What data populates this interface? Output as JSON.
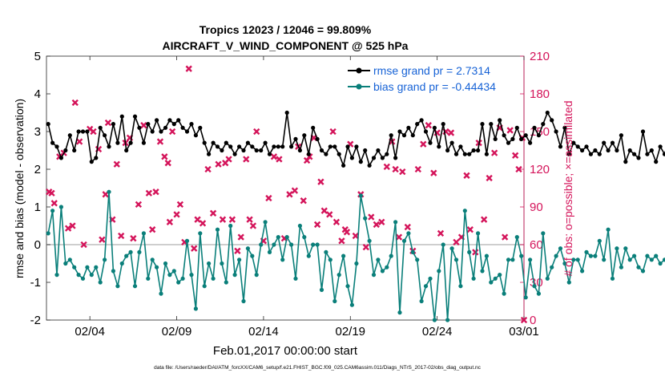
{
  "chart_data": {
    "type": "line",
    "title_line1": "Tropics 12023 / 12046 = 99.809%",
    "title_line2": "AIRCRAFT_V_WIND_COMPONENT @ 525 hPa",
    "xlabel": "Feb.01,2017 00:00:00 start",
    "ylabel_left": "rmse and bias (model - observation)",
    "ylabel_right": "# of obs: o=possible; ×=assimilated",
    "footer": "data file: /Users/raeder/DAI/ATM_forcXX/CAM6_setup/f.e21.FHIST_BGC.f09_025.CAM6assim.011/Diags_NTrS_2017-02/obs_diag_output.nc",
    "x_range_days": [
      0.5,
      28
    ],
    "x_ticks": [
      {
        "pos": 3,
        "label": "02/04"
      },
      {
        "pos": 8,
        "label": "02/09"
      },
      {
        "pos": 13,
        "label": "02/14"
      },
      {
        "pos": 18,
        "label": "02/19"
      },
      {
        "pos": 23,
        "label": "02/24"
      },
      {
        "pos": 28,
        "label": "03/01"
      }
    ],
    "ylim_left": [
      -2,
      5
    ],
    "y_ticks_left": [
      "-2",
      "-1",
      "0",
      "1",
      "2",
      "3",
      "4",
      "5"
    ],
    "ylim_right": [
      0,
      210
    ],
    "y_ticks_right": [
      "0",
      "30",
      "60",
      "90",
      "120",
      "150",
      "180",
      "210"
    ],
    "x_step_days": 0.25,
    "series": [
      {
        "name": "rmse grand pr = 2.7314",
        "color": "#000000",
        "marker": "circle",
        "values": [
          3.2,
          2.7,
          2.6,
          2.3,
          2.5,
          2.9,
          2.5,
          3.0,
          3.0,
          3.0,
          2.2,
          2.3,
          3.1,
          2.9,
          2.6,
          3.2,
          2.7,
          3.4,
          2.5,
          2.7,
          3.4,
          3.1,
          2.7,
          3.2,
          3.0,
          3.3,
          3.0,
          3.1,
          3.3,
          3.2,
          3.3,
          3.1,
          3.0,
          3.2,
          2.9,
          3.1,
          2.7,
          2.4,
          2.7,
          2.6,
          2.5,
          2.7,
          2.6,
          2.4,
          2.6,
          2.5,
          2.7,
          2.6,
          2.5,
          2.5,
          2.7,
          2.4,
          2.6,
          2.6,
          2.6,
          3.5,
          2.6,
          2.8,
          2.5,
          2.9,
          2.4,
          3.1,
          2.8,
          2.5,
          2.4,
          2.6,
          2.6,
          2.4,
          2.1,
          2.6,
          2.3,
          2.6,
          2.2,
          2.5,
          2.1,
          2.3,
          2.5,
          2.3,
          2.4,
          2.9,
          2.3,
          3.0,
          2.9,
          3.1,
          2.9,
          3.2,
          3.3,
          3.0,
          2.7,
          3.1,
          2.6,
          3.2,
          2.5,
          2.7,
          2.4,
          2.6,
          2.4,
          2.4,
          2.5,
          2.5,
          3.2,
          2.4,
          3.2,
          2.8,
          3.3,
          2.9,
          2.7,
          2.8,
          3.1,
          2.8,
          2.9,
          2.7,
          3.1,
          2.9,
          3.2,
          3.5,
          3.3,
          3.0,
          2.6,
          3.1,
          2.4,
          2.7,
          2.6,
          2.5,
          2.6,
          2.4,
          2.5,
          2.4,
          2.7,
          2.5,
          2.7,
          2.5,
          2.9,
          2.2,
          2.5,
          2.4,
          2.3,
          3.0,
          2.4,
          2.5,
          2.2,
          2.6,
          2.4,
          2.8,
          2.7,
          2.4,
          3.0,
          2.6,
          3.1,
          2.4,
          2.5,
          2.5,
          2.7,
          2.8,
          2.5,
          3.2,
          2.9,
          3.1,
          2.9,
          3.0,
          2.5,
          2.4,
          2.4,
          2.3,
          2.4,
          2.6,
          2.4,
          2.8,
          3.3,
          2.7,
          3.0,
          2.4,
          2.8,
          2.5,
          2.3,
          2.5,
          2.6,
          2.7,
          2.4,
          2.3,
          2.2,
          2.6,
          2.3,
          2.6,
          2.5,
          2.5,
          2.4,
          2.6,
          2.7,
          2.4,
          2.3,
          2.4,
          2.4,
          2.4,
          2.6,
          2.5,
          2.4,
          2.3,
          2.5,
          2.4,
          2.3,
          2.6,
          2.3,
          2.6,
          2.3,
          2.5,
          2.4,
          2.6,
          2.3,
          2.4,
          2.3,
          3.1,
          2.9,
          2.8,
          2.4,
          2.7,
          2.4,
          2.6,
          2.5,
          2.4,
          2.5,
          2.4,
          2.4,
          2.6,
          2.4,
          2.3,
          2.4,
          2.4,
          2.3,
          2.6,
          2.3,
          2.5,
          2.4,
          2.4,
          2.3,
          2.2,
          2.3,
          2.3,
          2.4,
          2.2,
          2.4,
          2.5,
          2.3,
          2.6,
          2.4,
          2.6,
          2.4,
          2.9,
          2.4,
          3.2,
          2.8,
          3.0,
          2.5,
          2.4,
          2.4
        ]
      },
      {
        "name": "bias grand pr = -0.44434",
        "color": "#0a7f7a",
        "marker": "circle",
        "values": [
          0.3,
          0.9,
          -0.8,
          1.0,
          -0.5,
          -0.4,
          -0.6,
          -0.8,
          -0.9,
          -0.6,
          -0.8,
          -0.6,
          -1.0,
          -0.4,
          1.4,
          -0.7,
          -1.1,
          -0.5,
          -0.3,
          -0.2,
          -1.1,
          -0.2,
          0.3,
          -0.9,
          -0.4,
          -0.6,
          -1.3,
          -0.5,
          -0.8,
          -0.7,
          -1.0,
          -0.9,
          0.1,
          -0.8,
          -1.7,
          0.3,
          -1.1,
          -0.5,
          -0.9,
          0.4,
          -0.5,
          -1.0,
          0.5,
          -0.8,
          -0.4,
          -1.5,
          -0.1,
          -0.3,
          -0.8,
          0.0,
          0.6,
          -0.2,
          0.0,
          0.2,
          -0.4,
          0.2,
          0.0,
          -0.9,
          0.5,
          0.2,
          -0.3,
          0.0,
          0.0,
          -1.2,
          -0.2,
          -0.4,
          -1.5,
          -0.8,
          -0.3,
          -1.1,
          -1.6,
          -0.5,
          1.3,
          0.7,
          0.1,
          -0.8,
          -0.4,
          -0.7,
          -0.6,
          -0.3,
          0.6,
          -1.8,
          0.1,
          0.3,
          -0.2,
          -0.4,
          -1.5,
          -1.1,
          -0.9,
          -2.0,
          -0.7,
          0.0,
          -2.0,
          -0.1,
          -0.4,
          -1.1,
          0.9,
          -0.2,
          -0.9,
          0.3,
          -0.7,
          -0.3,
          -1.0,
          -0.9,
          -0.8,
          -1.3,
          -0.4,
          -0.4,
          0.2,
          -0.3,
          -1.4,
          -0.4,
          -1.1,
          -1.3,
          0.3,
          -0.9,
          -0.6,
          -0.3,
          -0.1,
          -0.5,
          -1.0,
          -0.4,
          -0.4,
          -0.7,
          -0.2,
          -0.3,
          -0.3,
          0.1,
          -0.4,
          0.4,
          -0.9,
          -0.1,
          -0.6,
          -0.1,
          -0.4,
          -0.3,
          -0.6,
          -0.7,
          -0.3,
          -0.4,
          -0.3,
          -0.5,
          -0.4,
          -0.5,
          -0.8,
          -0.1,
          -1.0,
          -0.4,
          -0.7,
          -0.5,
          -0.8,
          -0.5,
          -0.8,
          -1.1,
          -0.7,
          -1.0,
          -0.6,
          -0.9,
          -0.6,
          -0.7,
          -0.3,
          -0.8,
          -0.4,
          -0.6,
          -0.7,
          -0.4,
          -0.8,
          -0.6,
          -0.3,
          -0.6,
          -0.2,
          -0.5,
          0.1,
          -0.4,
          0.4,
          -0.3,
          -0.5,
          -0.6,
          -0.4,
          -0.5,
          -0.3,
          -0.7,
          -0.5,
          -0.4,
          -0.6,
          -0.5,
          -0.7,
          -0.9,
          -0.4,
          -0.6,
          -0.3,
          -0.7,
          -0.5,
          -0.6,
          -0.4,
          -0.8,
          -0.5,
          -0.6,
          -0.7,
          -0.5,
          -0.4,
          -0.6,
          -0.5,
          -0.3,
          -0.4,
          -0.5,
          -0.6,
          -0.3,
          -0.5,
          -0.4,
          -0.7,
          -0.3,
          -0.5,
          -0.4,
          -0.2,
          -0.5,
          -0.3,
          -0.4,
          -0.6,
          -0.3,
          -0.5,
          -0.4,
          -0.2,
          -0.3,
          -0.6,
          -0.4,
          -0.3,
          -0.5,
          -0.4,
          -0.6,
          -0.3,
          -0.5,
          -0.4,
          -0.7,
          -0.3,
          -0.6,
          -0.5,
          -0.4,
          -0.8,
          -0.5,
          -0.3,
          -0.6,
          -0.4,
          -0.5,
          0.3,
          -0.2,
          -0.4,
          -0.3,
          0.3,
          -0.4
        ]
      }
    ],
    "obs_counts": {
      "color": "#d4145a",
      "marker": "x",
      "axis": "right",
      "points": [
        [
          0.65,
          102
        ],
        [
          0.8,
          101
        ],
        [
          0.95,
          93
        ],
        [
          1.25,
          130
        ],
        [
          1.5,
          133
        ],
        [
          1.75,
          73
        ],
        [
          2.0,
          75
        ],
        [
          2.15,
          173
        ],
        [
          2.4,
          142
        ],
        [
          2.65,
          60
        ],
        [
          3.0,
          152
        ],
        [
          3.2,
          150
        ],
        [
          3.5,
          136
        ],
        [
          3.7,
          64
        ],
        [
          3.9,
          100
        ],
        [
          4.05,
          157
        ],
        [
          4.3,
          80
        ],
        [
          4.55,
          124
        ],
        [
          4.8,
          67
        ],
        [
          5.05,
          141
        ],
        [
          5.3,
          145
        ],
        [
          5.5,
          65
        ],
        [
          5.8,
          92
        ],
        [
          6.1,
          155
        ],
        [
          6.4,
          101
        ],
        [
          6.6,
          72
        ],
        [
          6.8,
          102
        ],
        [
          7.05,
          142
        ],
        [
          7.3,
          130
        ],
        [
          7.5,
          125
        ],
        [
          7.6,
          78
        ],
        [
          7.75,
          150
        ],
        [
          8.0,
          84
        ],
        [
          8.2,
          92
        ],
        [
          8.45,
          62
        ],
        [
          8.7,
          200
        ],
        [
          9.0,
          57
        ],
        [
          9.2,
          80
        ],
        [
          9.5,
          77
        ],
        [
          9.8,
          120
        ],
        [
          10.1,
          85
        ],
        [
          10.4,
          124
        ],
        [
          10.65,
          80
        ],
        [
          10.8,
          125
        ],
        [
          11.0,
          128
        ],
        [
          11.2,
          80
        ],
        [
          11.5,
          55
        ],
        [
          11.7,
          66
        ],
        [
          12.0,
          128
        ],
        [
          12.2,
          80
        ],
        [
          12.4,
          75
        ],
        [
          12.6,
          150
        ],
        [
          13.0,
          63
        ],
        [
          13.3,
          97
        ],
        [
          13.6,
          130
        ],
        [
          13.9,
          128
        ],
        [
          14.2,
          65
        ],
        [
          14.5,
          100
        ],
        [
          14.8,
          103
        ],
        [
          15.0,
          138
        ],
        [
          15.3,
          95
        ],
        [
          15.5,
          127
        ],
        [
          15.65,
          130
        ],
        [
          15.9,
          145
        ],
        [
          16.1,
          76
        ],
        [
          16.3,
          110
        ],
        [
          16.5,
          87
        ],
        [
          16.8,
          84
        ],
        [
          17.0,
          150
        ],
        [
          17.2,
          78
        ],
        [
          17.5,
          63
        ],
        [
          17.7,
          72
        ],
        [
          17.8,
          70
        ],
        [
          18.0,
          140
        ],
        [
          18.3,
          67
        ],
        [
          18.6,
          100
        ],
        [
          18.9,
          58
        ],
        [
          19.2,
          82
        ],
        [
          19.5,
          76
        ],
        [
          19.8,
          78
        ],
        [
          20.1,
          122
        ],
        [
          20.4,
          142
        ],
        [
          20.6,
          120
        ],
        [
          20.8,
          66
        ],
        [
          21.0,
          118
        ],
        [
          21.3,
          74
        ],
        [
          21.6,
          55
        ],
        [
          21.9,
          120
        ],
        [
          22.2,
          140
        ],
        [
          22.5,
          155
        ],
        [
          22.8,
          117
        ],
        [
          23.0,
          149
        ],
        [
          23.2,
          69
        ],
        [
          23.5,
          150
        ],
        [
          23.8,
          149
        ],
        [
          24.1,
          62
        ],
        [
          24.4,
          66
        ],
        [
          24.7,
          115
        ],
        [
          24.9,
          72
        ],
        [
          25.2,
          54
        ],
        [
          25.4,
          141
        ],
        [
          25.7,
          80
        ],
        [
          26.0,
          113
        ],
        [
          26.3,
          133
        ],
        [
          26.6,
          153
        ],
        [
          26.9,
          66
        ],
        [
          27.2,
          151
        ],
        [
          27.5,
          131
        ],
        [
          27.7,
          120
        ],
        [
          27.9,
          145
        ],
        [
          28.0,
          0
        ]
      ]
    }
  }
}
